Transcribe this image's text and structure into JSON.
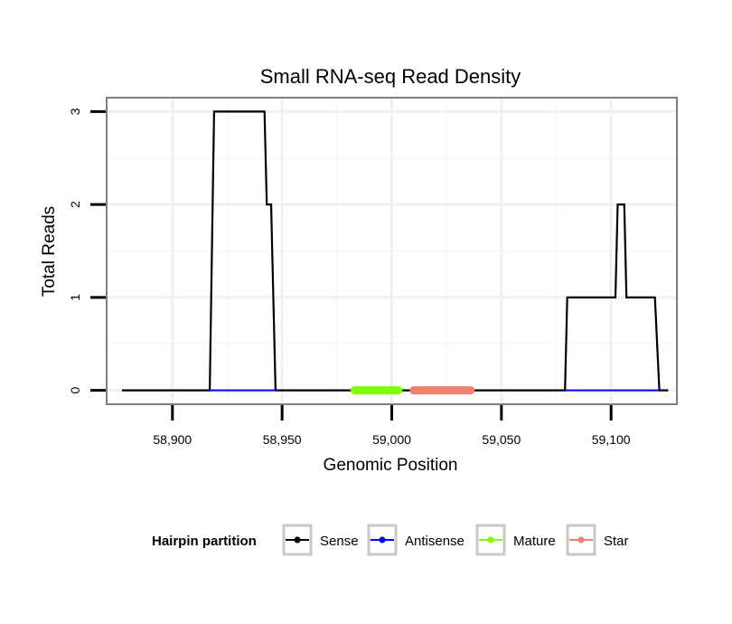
{
  "chart_data": {
    "type": "line",
    "title": "Small RNA-seq Read Density",
    "xlabel": "Genomic Position",
    "ylabel": "Total Reads",
    "xlim": [
      58870,
      59130
    ],
    "ylim": [
      -0.15,
      3.15
    ],
    "x_ticks": [
      58900,
      58950,
      59000,
      59050,
      59100
    ],
    "x_tick_labels": [
      "58,900",
      "58,950",
      "59,000",
      "59,050",
      "59,100"
    ],
    "y_ticks": [
      0,
      1,
      2,
      3
    ],
    "y_tick_labels": [
      "0",
      "1",
      "2",
      "3"
    ],
    "grid": true,
    "legend": {
      "title": "Hairpin partition",
      "position": "bottom",
      "entries": [
        {
          "name": "Sense",
          "color": "#000000"
        },
        {
          "name": "Antisense",
          "color": "#0000ff"
        },
        {
          "name": "Mature",
          "color": "#7fff00"
        },
        {
          "name": "Star",
          "color": "#f08070"
        }
      ]
    },
    "series": [
      {
        "name": "Sense",
        "color": "#000000",
        "points": [
          [
            58877,
            0
          ],
          [
            58917,
            0
          ],
          [
            58919,
            3
          ],
          [
            58942,
            3
          ],
          [
            58943,
            2
          ],
          [
            58945,
            2
          ],
          [
            58947,
            0
          ],
          [
            59079,
            0
          ],
          [
            59080,
            1
          ],
          [
            59102,
            1
          ],
          [
            59103,
            2
          ],
          [
            59106,
            2
          ],
          [
            59107,
            1
          ],
          [
            59120,
            1
          ],
          [
            59122,
            0
          ],
          [
            59126,
            0
          ]
        ]
      },
      {
        "name": "Antisense",
        "color": "#0000ff",
        "segments": [
          [
            58917,
            58947
          ],
          [
            59079,
            59122
          ]
        ]
      },
      {
        "name": "Mature",
        "color": "#7fff00",
        "segments": [
          [
            58983,
            59003
          ]
        ]
      },
      {
        "name": "Star",
        "color": "#f08070",
        "segments": [
          [
            59010,
            59036
          ]
        ]
      }
    ]
  }
}
